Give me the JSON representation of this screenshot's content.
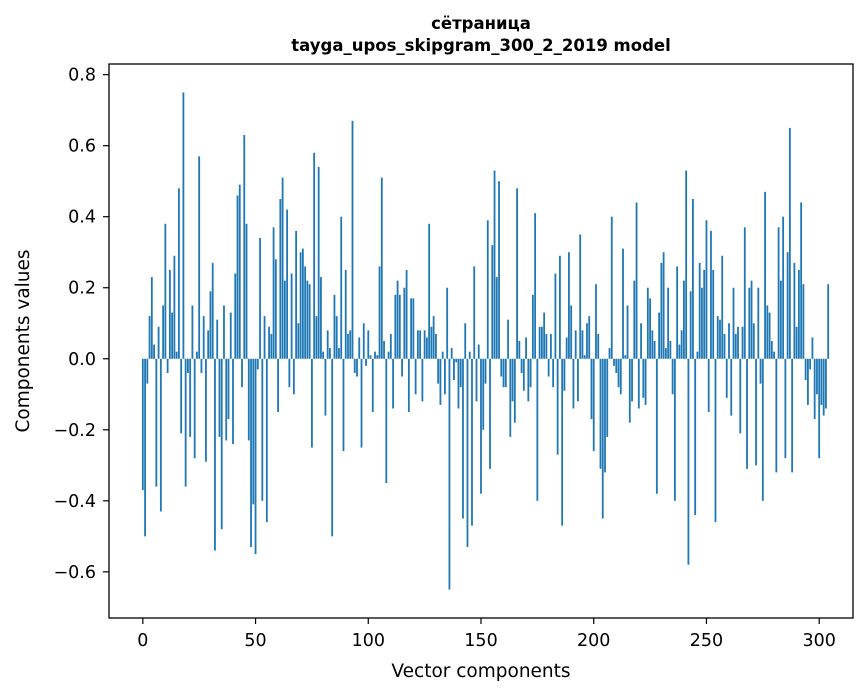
{
  "chart_data": {
    "type": "bar",
    "title_lines": [
      "сётраница",
      "tayga_upos_skipgram_300_2_2019 model"
    ],
    "xlabel": "Vector components",
    "ylabel": "Components values",
    "xlim": [
      -15,
      315
    ],
    "ylim": [
      -0.73,
      0.83
    ],
    "xticks": [
      0,
      50,
      100,
      150,
      200,
      250,
      300
    ],
    "xtick_labels": [
      "0",
      "50",
      "100",
      "150",
      "200",
      "250",
      "300"
    ],
    "yticks": [
      -0.6,
      -0.4,
      -0.2,
      0.0,
      0.2,
      0.4,
      0.6,
      0.8
    ],
    "ytick_labels": [
      "−0.6",
      "−0.4",
      "−0.2",
      "0.0",
      "0.2",
      "0.4",
      "0.6",
      "0.8"
    ],
    "bar_color": "#1f77b4",
    "x_start": 0,
    "values": [
      -0.37,
      -0.5,
      -0.07,
      0.12,
      0.23,
      0.04,
      -0.36,
      0.09,
      -0.43,
      0.15,
      0.38,
      -0.04,
      0.25,
      0.13,
      0.29,
      0.02,
      0.48,
      -0.21,
      0.75,
      -0.36,
      -0.04,
      -0.22,
      0.15,
      -0.28,
      0.02,
      0.57,
      -0.04,
      0.12,
      -0.29,
      0.08,
      0.19,
      0.27,
      -0.54,
      0.11,
      -0.22,
      -0.48,
      0.15,
      -0.23,
      -0.17,
      0.13,
      -0.24,
      0.24,
      0.46,
      0.49,
      -0.08,
      0.63,
      0.38,
      -0.23,
      -0.53,
      -0.41,
      -0.55,
      -0.03,
      0.34,
      -0.4,
      0.12,
      -0.46,
      0.09,
      0.07,
      0.37,
      0.28,
      -0.15,
      0.45,
      0.51,
      0.22,
      0.42,
      -0.08,
      0.24,
      -0.1,
      0.36,
      0.1,
      0.3,
      0.31,
      0.26,
      0.22,
      0.21,
      -0.25,
      0.58,
      0.12,
      0.54,
      0.23,
      0.02,
      -0.16,
      0.08,
      0.03,
      -0.5,
      0.18,
      0.12,
      0.03,
      0.4,
      -0.26,
      0.25,
      0.07,
      0.08,
      0.67,
      -0.04,
      -0.05,
      0.06,
      -0.25,
      0.1,
      -0.02,
      0.08,
      0.01,
      -0.15,
      0.02,
      0.01,
      0.26,
      0.51,
      0.05,
      -0.35,
      0.02,
      0.07,
      -0.14,
      0.18,
      0.22,
      0.18,
      -0.05,
      0.2,
      0.25,
      -0.15,
      0.17,
      0.17,
      -0.1,
      0.08,
      0.08,
      -0.12,
      0.08,
      0.06,
      0.38,
      0.09,
      0.12,
      0.07,
      -0.07,
      -0.13,
      0.02,
      -0.1,
      0.2,
      -0.65,
      0.03,
      -0.06,
      -0.01,
      -0.14,
      -0.08,
      -0.45,
      0.1,
      -0.53,
      0.02,
      -0.47,
      0.26,
      -0.12,
      0.04,
      -0.38,
      -0.2,
      -0.07,
      0.39,
      -0.31,
      0.32,
      0.53,
      0.23,
      0.5,
      -0.05,
      -0.08,
      -0.08,
      0.11,
      -0.22,
      -0.12,
      -0.18,
      0.48,
      0.05,
      -0.04,
      -0.09,
      0.06,
      -0.12,
      -0.08,
      0.18,
      0.41,
      -0.4,
      0.09,
      0.09,
      0.13,
      0.07,
      -0.05,
      0.07,
      -0.08,
      0.24,
      -0.27,
      0.29,
      -0.47,
      -0.09,
      0.06,
      0.3,
      0.15,
      -0.14,
      0.08,
      -0.12,
      0.35,
      0.08,
      0.01,
      0.1,
      0.12,
      -0.17,
      -0.26,
      0.21,
      0.07,
      -0.31,
      -0.45,
      -0.32,
      -0.22,
      0.03,
      0.4,
      -0.02,
      -0.04,
      -0.08,
      -0.1,
      0.31,
      0.01,
      0.15,
      -0.18,
      -0.12,
      0.22,
      0.44,
      -0.14,
      0.1,
      -0.11,
      -0.13,
      0.2,
      0.17,
      0.08,
      0.05,
      -0.38,
      0.13,
      0.27,
      0.3,
      0.03,
      0.2,
      0.05,
      -0.1,
      -0.4,
      0.26,
      0.04,
      0.08,
      0.22,
      0.53,
      -0.58,
      0.19,
      0.45,
      -0.44,
      0.02,
      0.27,
      0.2,
      0.25,
      0.39,
      -0.15,
      0.36,
      0.25,
      -0.46,
      0.12,
      0.11,
      0.29,
      0.07,
      -0.11,
      0.1,
      -0.16,
      0.2,
      0.07,
      0.09,
      -0.21,
      0.09,
      0.37,
      -0.31,
      0.2,
      0.22,
      0.1,
      -0.3,
      0.2,
      -0.07,
      -0.4,
      0.47,
      0.15,
      0.13,
      0.05,
      0.02,
      -0.32,
      0.37,
      0.22,
      0.4,
      -0.28,
      0.3,
      0.65,
      -0.32,
      0.27,
      0.09,
      0.25,
      0.44,
      0.21,
      -0.06,
      -0.13,
      -0.03,
      0.06,
      -0.17,
      -0.1,
      -0.28,
      -0.13,
      -0.16,
      -0.14,
      0.21
    ]
  }
}
